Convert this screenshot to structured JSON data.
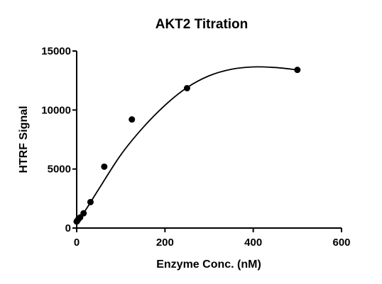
{
  "chart_data": {
    "type": "scatter",
    "title": "AKT2 Titration",
    "x_label": "Enzyme Conc. (nM)",
    "y_label": "HTRF Signal",
    "series": [
      {
        "color": "#000000",
        "x": [
          0,
          0.98,
          1.95,
          3.91,
          7.81,
          15.63,
          31.25,
          62.5,
          125,
          250,
          500
        ],
        "values": [
          550,
          600,
          650,
          750,
          900,
          1250,
          2200,
          5200,
          9200,
          11850,
          13400
        ]
      }
    ],
    "curve": {
      "color": "#000000",
      "x": [
        0,
        25,
        50,
        100,
        150,
        200,
        250,
        300,
        350,
        400,
        450,
        500
      ],
      "values": [
        400,
        1800,
        3300,
        6200,
        8500,
        10400,
        11900,
        12900,
        13450,
        13650,
        13600,
        13400
      ]
    },
    "xlim": [
      0,
      600
    ],
    "xticks": [
      0,
      200,
      400,
      600
    ],
    "ylim": [
      0,
      15000
    ],
    "yticks": [
      0,
      5000,
      10000,
      15000
    ]
  }
}
